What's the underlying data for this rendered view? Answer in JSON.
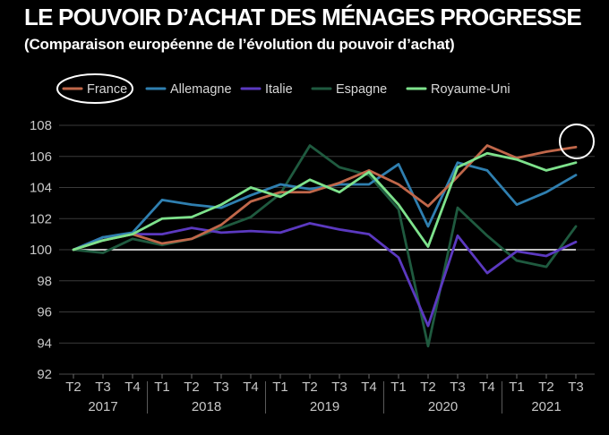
{
  "chart_data": {
    "type": "line",
    "title": "LE POUVOIR D’ACHAT DES MÉNAGES PROGRESSE",
    "subtitle": "(Comparaison européenne de l’évolution du pouvoir d’achat)",
    "xlabel": "",
    "ylabel": "",
    "ylim": [
      92,
      108
    ],
    "yticks": [
      92,
      94,
      96,
      98,
      100,
      102,
      104,
      106,
      108
    ],
    "quarters": [
      "T2",
      "T3",
      "T4",
      "T1",
      "T2",
      "T3",
      "T4",
      "T1",
      "T2",
      "T3",
      "T4",
      "T1",
      "T2",
      "T3",
      "T4",
      "T1",
      "T2",
      "T3"
    ],
    "years": [
      {
        "label": "2017",
        "start": 0,
        "end": 2
      },
      {
        "label": "2018",
        "start": 3,
        "end": 6
      },
      {
        "label": "2019",
        "start": 7,
        "end": 10
      },
      {
        "label": "2020",
        "start": 11,
        "end": 14
      },
      {
        "label": "2021",
        "start": 15,
        "end": 17
      }
    ],
    "baseline": 100,
    "grid": true,
    "legend_position": "top",
    "highlight_marks": [
      "legend-france",
      "france-end"
    ],
    "series": [
      {
        "name": "France",
        "color": "#c0674a",
        "values": [
          100,
          100.6,
          101.0,
          100.4,
          100.7,
          101.6,
          103.1,
          103.7,
          103.7,
          104.3,
          105.1,
          104.2,
          102.8,
          104.7,
          106.7,
          105.9,
          106.3,
          106.6
        ]
      },
      {
        "name": "Allemagne",
        "color": "#2f7fb0",
        "values": [
          100,
          100.8,
          101.1,
          103.2,
          102.9,
          102.7,
          103.5,
          104.2,
          103.9,
          104.2,
          104.2,
          105.5,
          101.5,
          105.6,
          105.1,
          102.9,
          103.7,
          104.8
        ]
      },
      {
        "name": "Italie",
        "color": "#5b39c0",
        "values": [
          100,
          100.8,
          101.0,
          101.0,
          101.4,
          101.1,
          101.2,
          101.1,
          101.7,
          101.3,
          101.0,
          99.5,
          95.1,
          100.9,
          98.5,
          99.9,
          99.6,
          100.5
        ]
      },
      {
        "name": "Espagne",
        "color": "#1f5a3f",
        "values": [
          100,
          99.8,
          100.7,
          100.3,
          100.7,
          101.4,
          102.1,
          103.6,
          106.7,
          105.3,
          104.8,
          102.6,
          93.8,
          102.7,
          100.9,
          99.3,
          98.9,
          101.5
        ]
      },
      {
        "name": "Royaume-Uni",
        "color": "#7ee28c",
        "values": [
          100,
          100.6,
          101.0,
          102.0,
          102.1,
          102.9,
          104.0,
          103.4,
          104.5,
          103.7,
          105.0,
          102.9,
          100.2,
          105.3,
          106.2,
          105.8,
          105.1,
          105.6
        ]
      }
    ]
  }
}
